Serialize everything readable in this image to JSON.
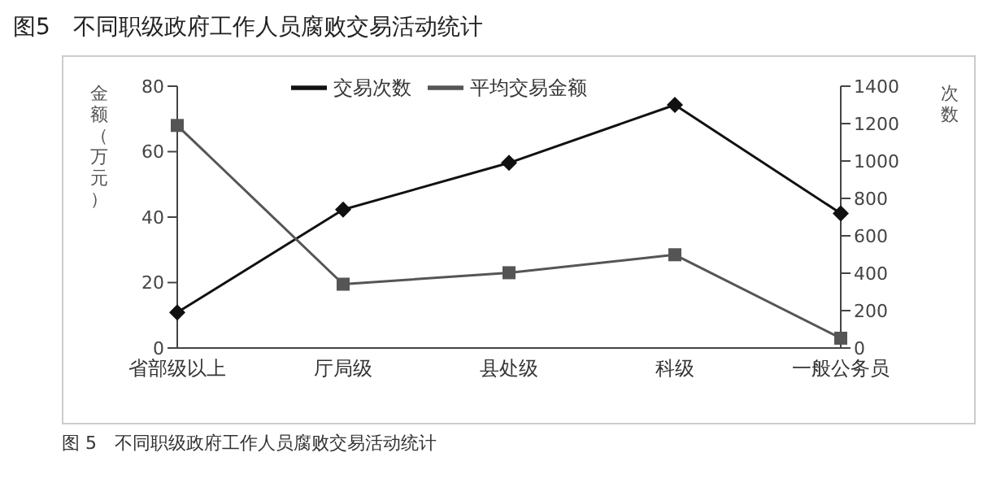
{
  "chart_data": {
    "type": "line",
    "title": "图5　不同职级政府工作人员腐败交易活动统计",
    "ylabel": "金额（万元）",
    "y2label": "次数",
    "categories": [
      "省部级以上",
      "厅局级",
      "县处级",
      "科级",
      "一般公务员"
    ],
    "series": [
      {
        "name": "交易次数",
        "color": "#111111",
        "axis": "y2",
        "marker": "diamond",
        "values": [
          190,
          740,
          990,
          1300,
          720
        ]
      },
      {
        "name": "平均交易金额",
        "color": "#555555",
        "marker": "square",
        "values": [
          68,
          19.5,
          23,
          28.5,
          3
        ]
      }
    ],
    "ylim": [
      0,
      80
    ],
    "yticks": [
      0,
      20,
      40,
      60,
      80
    ],
    "y2lim": [
      0,
      1400
    ],
    "y2ticks": [
      0,
      200,
      400,
      600,
      800,
      1000,
      1200,
      1400
    ],
    "grid": false,
    "legend": "top left",
    "annotations": [
      "图 5　不同职级政府工作人员腐败交易活动统计"
    ]
  }
}
